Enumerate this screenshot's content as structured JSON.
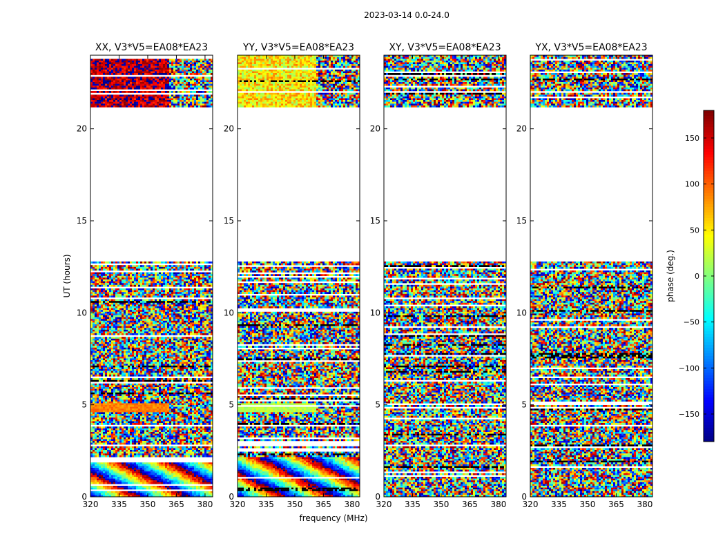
{
  "chart_data": {
    "type": "heatmap",
    "suptitle": "2023-03-14 0.0-24.0",
    "xlabel": "frequency (MHz)",
    "ylabel": "UT (hours)",
    "xlim": [
      320,
      384
    ],
    "ylim": [
      0,
      24
    ],
    "x_ticks": [
      320,
      335,
      350,
      365,
      380
    ],
    "y_ticks": [
      0,
      5,
      10,
      15,
      20
    ],
    "panels": [
      {
        "title": "XX, V3*V5=EA08*EA23",
        "dominant_phase_upper": 160,
        "band_5h_phase": 90
      },
      {
        "title": "YY, V3*V5=EA08*EA23",
        "dominant_phase_upper": 50,
        "band_5h_phase": 20
      },
      {
        "title": "XY, V3*V5=EA08*EA23",
        "dominant_phase_upper": null,
        "band_5h_phase": null
      },
      {
        "title": "YX, V3*V5=EA08*EA23",
        "dominant_phase_upper": null,
        "band_5h_phase": null
      }
    ],
    "data_gap_hours": [
      12.85,
      21.2
    ],
    "colorbar": {
      "label": "phase (deg.)",
      "range": [
        -180,
        180
      ],
      "ticks": [
        150,
        100,
        50,
        0,
        -50,
        -100,
        -150
      ],
      "colormap": "jet"
    }
  }
}
